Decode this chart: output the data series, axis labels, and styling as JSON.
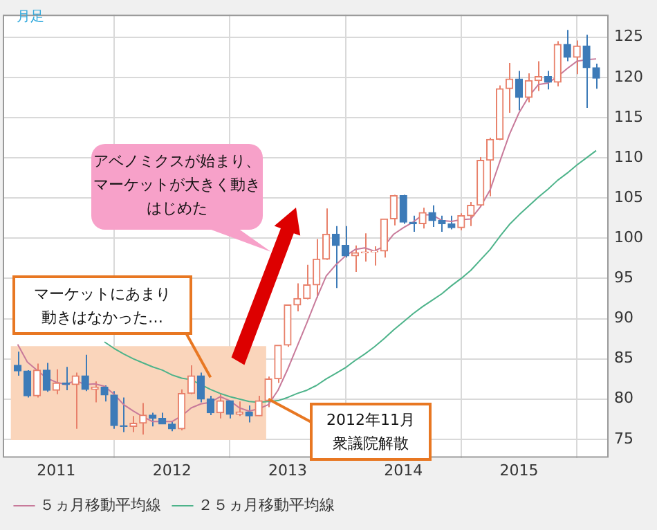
{
  "chart_data": {
    "type": "candlestick",
    "x": [
      "2010-09",
      "2010-10",
      "2010-11",
      "2010-12",
      "2011-01",
      "2011-02",
      "2011-03",
      "2011-04",
      "2011-05",
      "2011-06",
      "2011-07",
      "2011-08",
      "2011-09",
      "2011-10",
      "2011-11",
      "2011-12",
      "2012-01",
      "2012-02",
      "2012-03",
      "2012-04",
      "2012-05",
      "2012-06",
      "2012-07",
      "2012-08",
      "2012-09",
      "2012-10",
      "2012-11",
      "2012-12",
      "2013-01",
      "2013-02",
      "2013-03",
      "2013-04",
      "2013-05",
      "2013-06",
      "2013-07",
      "2013-08",
      "2013-09",
      "2013-10",
      "2013-11",
      "2013-12",
      "2014-01",
      "2014-02",
      "2014-03",
      "2014-04",
      "2014-05",
      "2014-06",
      "2014-07",
      "2014-08",
      "2014-09",
      "2014-10",
      "2014-11",
      "2014-12",
      "2015-01",
      "2015-02",
      "2015-03",
      "2015-04",
      "2015-05",
      "2015-06",
      "2015-07",
      "2015-08",
      "2015-09"
    ],
    "series": [
      {
        "ohlc": [
          [
            84.2,
            85.9,
            82.9,
            83.5
          ],
          [
            83.5,
            83.6,
            80.2,
            80.4
          ],
          [
            80.4,
            84.4,
            80.2,
            83.6
          ],
          [
            83.6,
            84.5,
            80.9,
            81.1
          ],
          [
            81.1,
            83.7,
            80.6,
            82.0
          ],
          [
            82.0,
            84.0,
            81.1,
            81.8
          ],
          [
            81.8,
            83.3,
            76.3,
            82.9
          ],
          [
            82.9,
            85.5,
            81.0,
            81.2
          ],
          [
            81.2,
            82.2,
            79.6,
            81.5
          ],
          [
            81.5,
            81.7,
            79.7,
            80.5
          ],
          [
            80.5,
            81.0,
            76.3,
            76.7
          ],
          [
            76.7,
            80.2,
            75.9,
            76.6
          ],
          [
            76.6,
            77.9,
            75.9,
            77.0
          ],
          [
            77.0,
            79.5,
            75.6,
            78.0
          ],
          [
            78.0,
            78.3,
            76.6,
            77.6
          ],
          [
            77.6,
            78.3,
            76.9,
            76.9
          ],
          [
            76.9,
            77.3,
            76.0,
            76.3
          ],
          [
            76.3,
            81.2,
            76.1,
            80.7
          ],
          [
            80.7,
            84.2,
            80.6,
            82.9
          ],
          [
            82.9,
            83.3,
            79.6,
            80.0
          ],
          [
            80.0,
            80.4,
            78.0,
            78.3
          ],
          [
            78.3,
            80.6,
            77.6,
            79.8
          ],
          [
            79.8,
            79.8,
            77.6,
            78.1
          ],
          [
            78.1,
            79.7,
            77.9,
            78.4
          ],
          [
            78.4,
            79.2,
            77.1,
            77.9
          ],
          [
            77.9,
            80.4,
            77.9,
            79.8
          ],
          [
            79.8,
            82.8,
            79.0,
            82.5
          ],
          [
            82.5,
            86.7,
            82.0,
            86.7
          ],
          [
            86.7,
            91.7,
            86.5,
            91.7
          ],
          [
            91.7,
            94.4,
            90.9,
            92.5
          ],
          [
            92.5,
            96.7,
            92.4,
            94.2
          ],
          [
            94.2,
            99.9,
            92.6,
            97.4
          ],
          [
            97.4,
            103.7,
            97.3,
            100.5
          ],
          [
            100.5,
            101.5,
            93.8,
            99.1
          ],
          [
            99.1,
            101.5,
            97.6,
            97.8
          ],
          [
            97.8,
            99.1,
            95.8,
            98.2
          ],
          [
            98.2,
            100.6,
            97.1,
            98.3
          ],
          [
            98.3,
            99.0,
            96.6,
            98.4
          ],
          [
            98.4,
            102.4,
            97.6,
            102.4
          ],
          [
            102.4,
            105.4,
            101.6,
            105.3
          ],
          [
            105.3,
            105.4,
            101.8,
            102.0
          ],
          [
            102.0,
            102.8,
            100.8,
            101.8
          ],
          [
            101.8,
            103.8,
            101.2,
            103.2
          ],
          [
            103.2,
            104.1,
            101.4,
            102.2
          ],
          [
            102.2,
            102.8,
            100.8,
            101.8
          ],
          [
            101.8,
            102.8,
            101.1,
            101.3
          ],
          [
            101.3,
            103.1,
            101.0,
            102.8
          ],
          [
            102.8,
            104.5,
            101.5,
            104.1
          ],
          [
            104.1,
            110.1,
            104.0,
            109.7
          ],
          [
            109.7,
            112.5,
            105.2,
            112.3
          ],
          [
            112.3,
            119.0,
            112.2,
            118.6
          ],
          [
            118.6,
            121.8,
            115.6,
            119.8
          ],
          [
            119.8,
            120.8,
            115.9,
            117.5
          ],
          [
            117.5,
            120.5,
            116.9,
            119.6
          ],
          [
            119.6,
            122.0,
            118.3,
            120.1
          ],
          [
            120.1,
            120.8,
            118.5,
            119.4
          ],
          [
            119.4,
            124.5,
            118.9,
            124.1
          ],
          [
            124.1,
            125.9,
            122.0,
            122.5
          ],
          [
            122.5,
            124.6,
            120.4,
            123.9
          ],
          [
            123.9,
            125.3,
            116.2,
            121.2
          ],
          [
            121.2,
            121.7,
            118.6,
            119.9
          ]
        ],
        "colors": [
          "#3d7bb8",
          "#3d7bb8",
          "#e8806a",
          "#3d7bb8",
          "#e8806a",
          "#3d7bb8",
          "#e8806a",
          "#3d7bb8",
          "#e8806a",
          "#3d7bb8",
          "#3d7bb8",
          "#3d7bb8",
          "#e8806a",
          "#e8806a",
          "#3d7bb8",
          "#3d7bb8",
          "#3d7bb8",
          "#e8806a",
          "#e8806a",
          "#3d7bb8",
          "#3d7bb8",
          "#e8806a",
          "#3d7bb8",
          "#e8806a",
          "#3d7bb8",
          "#e8806a",
          "#e8806a",
          "#e8806a",
          "#e8806a",
          "#e8806a",
          "#e8806a",
          "#e8806a",
          "#e8806a",
          "#3d7bb8",
          "#3d7bb8",
          "#e8806a",
          "#e8806a",
          "#e8806a",
          "#e8806a",
          "#e8806a",
          "#3d7bb8",
          "#3d7bb8",
          "#e8806a",
          "#3d7bb8",
          "#3d7bb8",
          "#3d7bb8",
          "#e8806a",
          "#e8806a",
          "#e8806a",
          "#e8806a",
          "#e8806a",
          "#e8806a",
          "#3d7bb8",
          "#e8806a",
          "#e8806a",
          "#3d7bb8",
          "#e8806a",
          "#3d7bb8",
          "#e8806a",
          "#3d7bb8",
          "#3d7bb8"
        ]
      },
      {
        "type": "line",
        "name": "５ヵ月移動平均線",
        "color": "#c87a9a",
        "values": [
          86.8,
          84.6,
          83.6,
          82.6,
          82.1,
          81.8,
          82.3,
          81.8,
          81.9,
          81.6,
          80.6,
          79.3,
          78.5,
          77.8,
          77.2,
          77.2,
          77.2,
          77.9,
          78.9,
          79.4,
          79.6,
          80.3,
          79.8,
          78.9,
          78.5,
          78.8,
          79.3,
          81.1,
          83.7,
          86.6,
          89.5,
          92.5,
          95.3,
          96.7,
          97.8,
          98.6,
          98.8,
          98.4,
          99.0,
          100.5,
          101.3,
          102.0,
          102.9,
          102.9,
          102.2,
          102.1,
          102.3,
          102.4,
          103.9,
          106.0,
          109.5,
          112.9,
          115.6,
          117.6,
          119.1,
          119.3,
          120.1,
          121.1,
          122.0,
          122.2,
          122.3
        ]
      },
      {
        "type": "line",
        "name": "２５ヵ月移動平均線",
        "color": "#4db38a",
        "values": [
          null,
          null,
          null,
          null,
          null,
          null,
          null,
          null,
          null,
          87.1,
          86.3,
          85.6,
          85.0,
          84.5,
          84.0,
          83.6,
          83.0,
          82.6,
          82.4,
          81.8,
          81.2,
          80.7,
          80.3,
          80.0,
          79.7,
          79.6,
          79.7,
          79.8,
          80.2,
          80.7,
          81.1,
          81.7,
          82.5,
          83.2,
          83.9,
          84.8,
          85.6,
          86.5,
          87.5,
          88.6,
          89.6,
          90.6,
          91.5,
          92.3,
          93.1,
          94.1,
          95.0,
          96.0,
          97.3,
          98.6,
          100.2,
          101.7,
          102.9,
          104.0,
          105.1,
          106.1,
          107.2,
          108.1,
          109.1,
          110.0,
          110.9
        ]
      }
    ],
    "xlim": [
      "2010-07-15",
      "2015-10-10"
    ],
    "xticks": [
      "2011",
      "2012",
      "2013",
      "2014",
      "2015"
    ],
    "ylim": [
      72.7,
      127.8
    ],
    "yticks": [
      75,
      80,
      85,
      90,
      95,
      100,
      105,
      110,
      115,
      120,
      125
    ],
    "grid": true,
    "legend": "bottom",
    "marker": "none",
    "bands": [
      {
        "axis": "x",
        "from": "2010-08-10",
        "to": "2012-10-25",
        "color": "#fad5bb"
      }
    ],
    "annotations": [
      "月足",
      "アベノミクスが始まり、マーケットが大きく動きはじめた",
      {
        "text": "マーケットにあまり動きはなかった…",
        "x": "2012-05",
        "y": 82.7
      },
      {
        "text": "2012年11月衆議院解散",
        "x": "2012-11",
        "y": 80.0
      }
    ]
  }
}
